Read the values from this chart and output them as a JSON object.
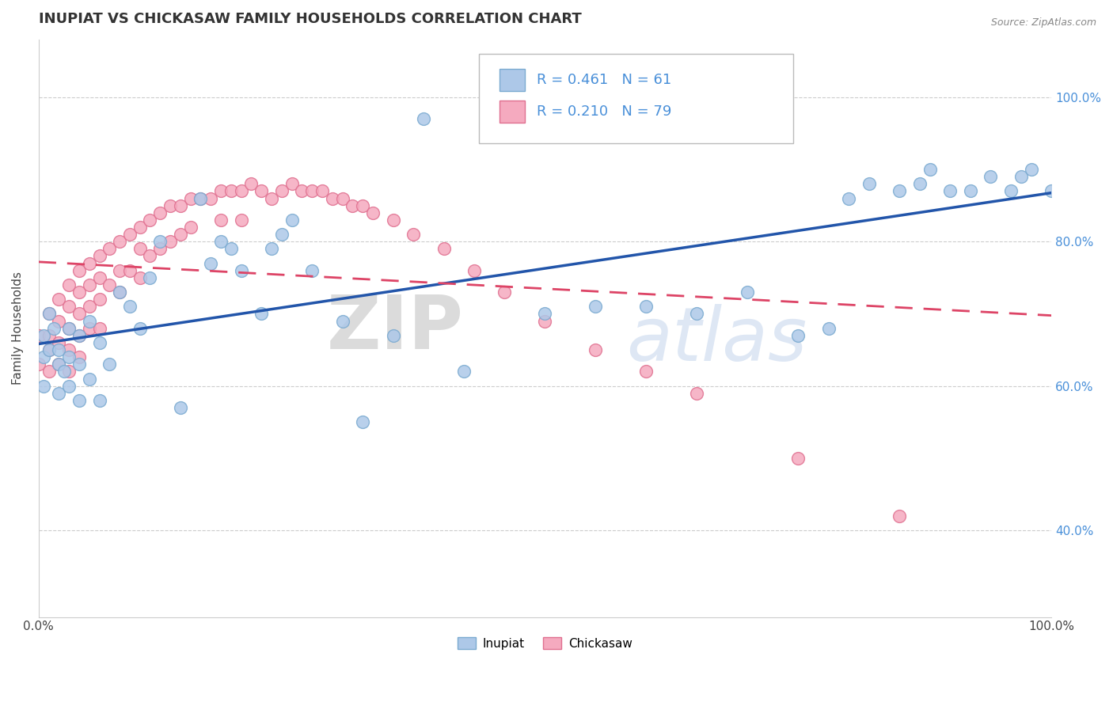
{
  "title": "INUPIAT VS CHICKASAW FAMILY HOUSEHOLDS CORRELATION CHART",
  "source": "Source: ZipAtlas.com",
  "ylabel": "Family Households",
  "xlim": [
    0.0,
    1.0
  ],
  "ylim": [
    0.28,
    1.08
  ],
  "xticks": [
    0.0,
    0.25,
    0.5,
    0.75,
    1.0
  ],
  "xticklabels": [
    "0.0%",
    "",
    "",
    "",
    "100.0%"
  ],
  "ytick_positions": [
    0.4,
    0.6,
    0.8,
    1.0
  ],
  "ytick_labels": [
    "40.0%",
    "60.0%",
    "80.0%",
    "100.0%"
  ],
  "inupiat_color": "#adc8e8",
  "chickasaw_color": "#f5aabf",
  "inupiat_edge": "#7aaad0",
  "chickasaw_edge": "#e07090",
  "trend_inupiat_color": "#2255aa",
  "trend_chickasaw_color": "#dd4466",
  "R_inupiat": 0.461,
  "N_inupiat": 61,
  "R_chickasaw": 0.21,
  "N_chickasaw": 79,
  "legend_label_inupiat": "Inupiat",
  "legend_label_chickasaw": "Chickasaw",
  "watermark_zip": "ZIP",
  "watermark_atlas": "atlas",
  "grid_color": "#cccccc",
  "background_color": "#ffffff",
  "title_fontsize": 13,
  "axis_label_fontsize": 11,
  "tick_fontsize": 11,
  "legend_fontsize": 13,
  "inupiat_x": [
    0.005,
    0.005,
    0.005,
    0.01,
    0.01,
    0.015,
    0.02,
    0.02,
    0.02,
    0.025,
    0.03,
    0.03,
    0.03,
    0.04,
    0.04,
    0.04,
    0.05,
    0.05,
    0.06,
    0.06,
    0.07,
    0.08,
    0.09,
    0.1,
    0.11,
    0.12,
    0.14,
    0.16,
    0.17,
    0.18,
    0.19,
    0.2,
    0.22,
    0.23,
    0.24,
    0.25,
    0.27,
    0.3,
    0.32,
    0.35,
    0.38,
    0.42,
    0.5,
    0.55,
    0.6,
    0.65,
    0.7,
    0.75,
    0.78,
    0.8,
    0.82,
    0.85,
    0.87,
    0.88,
    0.9,
    0.92,
    0.94,
    0.96,
    0.97,
    0.98,
    1.0
  ],
  "inupiat_y": [
    0.67,
    0.64,
    0.6,
    0.7,
    0.65,
    0.68,
    0.65,
    0.63,
    0.59,
    0.62,
    0.68,
    0.64,
    0.6,
    0.67,
    0.63,
    0.58,
    0.69,
    0.61,
    0.66,
    0.58,
    0.63,
    0.73,
    0.71,
    0.68,
    0.75,
    0.8,
    0.57,
    0.86,
    0.77,
    0.8,
    0.79,
    0.76,
    0.7,
    0.79,
    0.81,
    0.83,
    0.76,
    0.69,
    0.55,
    0.67,
    0.97,
    0.62,
    0.7,
    0.71,
    0.71,
    0.7,
    0.73,
    0.67,
    0.68,
    0.86,
    0.88,
    0.87,
    0.88,
    0.9,
    0.87,
    0.87,
    0.89,
    0.87,
    0.89,
    0.9,
    0.87
  ],
  "chickasaw_x": [
    0.0,
    0.0,
    0.01,
    0.01,
    0.01,
    0.01,
    0.02,
    0.02,
    0.02,
    0.02,
    0.03,
    0.03,
    0.03,
    0.03,
    0.03,
    0.04,
    0.04,
    0.04,
    0.04,
    0.04,
    0.05,
    0.05,
    0.05,
    0.05,
    0.06,
    0.06,
    0.06,
    0.06,
    0.07,
    0.07,
    0.08,
    0.08,
    0.08,
    0.09,
    0.09,
    0.1,
    0.1,
    0.1,
    0.11,
    0.11,
    0.12,
    0.12,
    0.13,
    0.13,
    0.14,
    0.14,
    0.15,
    0.15,
    0.16,
    0.17,
    0.18,
    0.18,
    0.19,
    0.2,
    0.2,
    0.21,
    0.22,
    0.23,
    0.24,
    0.25,
    0.26,
    0.27,
    0.28,
    0.29,
    0.3,
    0.31,
    0.32,
    0.33,
    0.35,
    0.37,
    0.4,
    0.43,
    0.46,
    0.5,
    0.55,
    0.6,
    0.65,
    0.75,
    0.85
  ],
  "chickasaw_y": [
    0.67,
    0.63,
    0.7,
    0.67,
    0.65,
    0.62,
    0.72,
    0.69,
    0.66,
    0.63,
    0.74,
    0.71,
    0.68,
    0.65,
    0.62,
    0.76,
    0.73,
    0.7,
    0.67,
    0.64,
    0.77,
    0.74,
    0.71,
    0.68,
    0.78,
    0.75,
    0.72,
    0.68,
    0.79,
    0.74,
    0.8,
    0.76,
    0.73,
    0.81,
    0.76,
    0.82,
    0.79,
    0.75,
    0.83,
    0.78,
    0.84,
    0.79,
    0.85,
    0.8,
    0.85,
    0.81,
    0.86,
    0.82,
    0.86,
    0.86,
    0.87,
    0.83,
    0.87,
    0.87,
    0.83,
    0.88,
    0.87,
    0.86,
    0.87,
    0.88,
    0.87,
    0.87,
    0.87,
    0.86,
    0.86,
    0.85,
    0.85,
    0.84,
    0.83,
    0.81,
    0.79,
    0.76,
    0.73,
    0.69,
    0.65,
    0.62,
    0.59,
    0.5,
    0.42
  ]
}
